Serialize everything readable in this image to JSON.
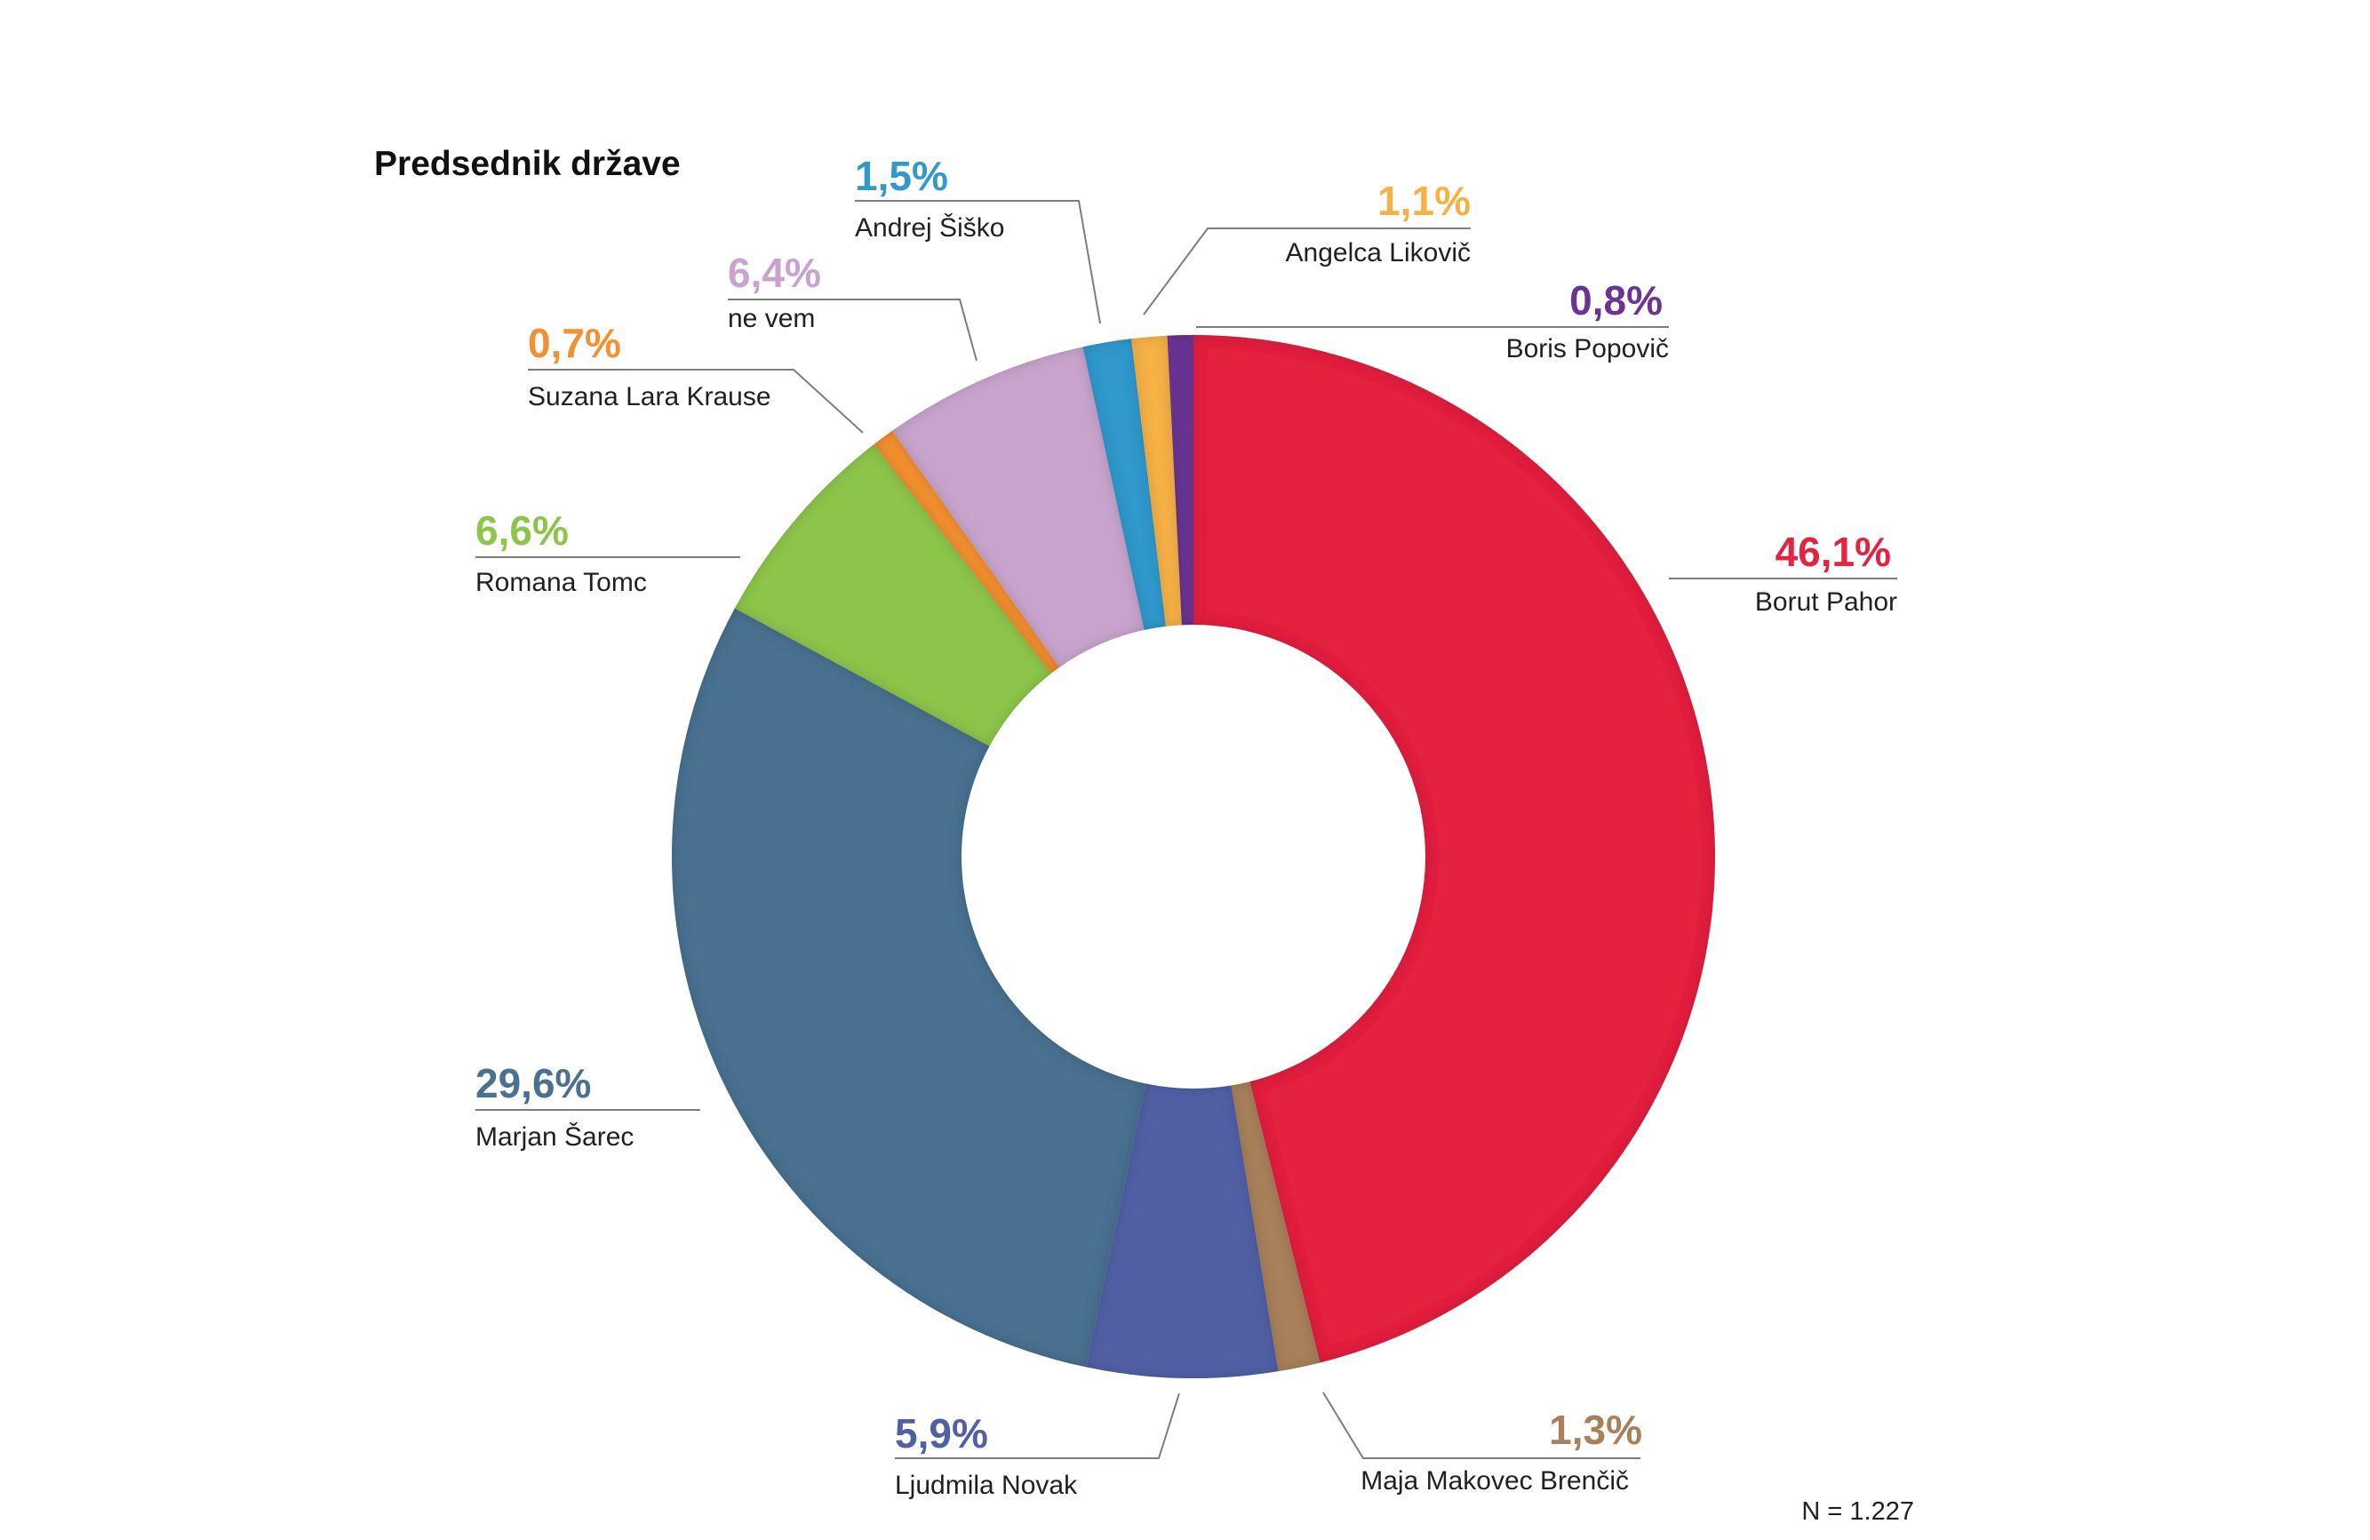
{
  "chart_data": {
    "type": "pie",
    "donut": true,
    "title": "Predsednik države",
    "legend": "none",
    "note": "N = 1.227",
    "slices": [
      {
        "label": "Borut Pahor",
        "value": 46.1,
        "value_label": "46,1%",
        "color": "#e3233f"
      },
      {
        "label": "Maja Makovec Brenčič",
        "value": 1.3,
        "value_label": "1,3%",
        "color": "#a8815c"
      },
      {
        "label": "Ljudmila Novak",
        "value": 5.9,
        "value_label": "5,9%",
        "color": "#5160a4"
      },
      {
        "label": "Marjan Šarec",
        "value": 29.6,
        "value_label": "29,6%",
        "color": "#4a7190"
      },
      {
        "label": "Romana Tomc",
        "value": 6.6,
        "value_label": "6,6%",
        "color": "#8dc54b"
      },
      {
        "label": "Suzana Lara Krause",
        "value": 0.7,
        "value_label": "0,7%",
        "color": "#f39033"
      },
      {
        "label": "ne vem",
        "value": 6.4,
        "value_label": "6,4%",
        "color": "#c8a4cc"
      },
      {
        "label": "Andrej Šiško",
        "value": 1.5,
        "value_label": "1,5%",
        "color": "#3399cc"
      },
      {
        "label": "Angelca Likovič",
        "value": 1.1,
        "value_label": "1,1%",
        "color": "#f6b146"
      },
      {
        "label": "Boris Popovič",
        "value": 0.8,
        "value_label": "0,8%",
        "color": "#6b3493"
      }
    ]
  }
}
